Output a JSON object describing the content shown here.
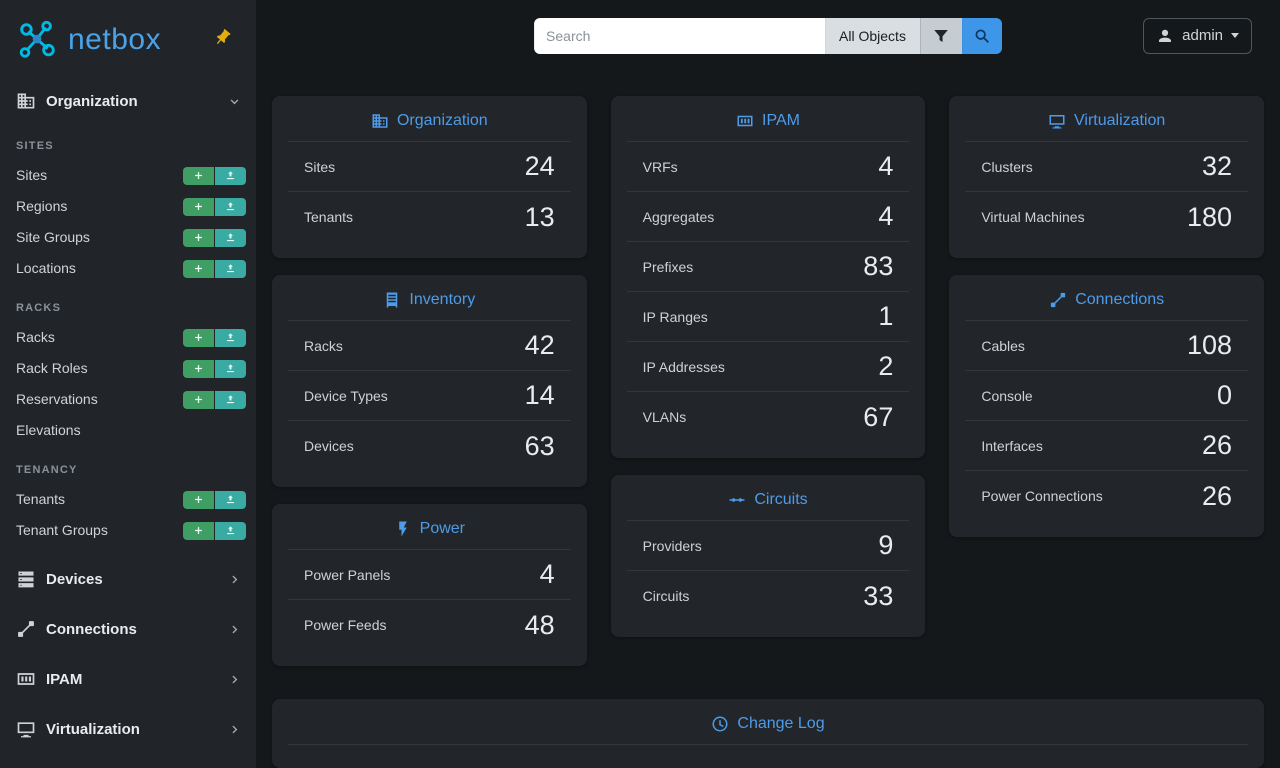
{
  "brand": {
    "logo_text": "netbox"
  },
  "topbar": {
    "search_placeholder": "Search",
    "object_type_label": "All Objects",
    "user_label": "admin"
  },
  "sidebar": {
    "sections_expanded": [
      {
        "label": "Organization",
        "icon": "organization",
        "groups": [
          {
            "heading": "SITES",
            "items": [
              {
                "label": "Sites",
                "actions": [
                  "add",
                  "import"
                ]
              },
              {
                "label": "Regions",
                "actions": [
                  "add",
                  "import"
                ]
              },
              {
                "label": "Site Groups",
                "actions": [
                  "add",
                  "import"
                ]
              },
              {
                "label": "Locations",
                "actions": [
                  "add",
                  "import"
                ]
              }
            ]
          },
          {
            "heading": "RACKS",
            "items": [
              {
                "label": "Racks",
                "actions": [
                  "add",
                  "import"
                ]
              },
              {
                "label": "Rack Roles",
                "actions": [
                  "add",
                  "import"
                ]
              },
              {
                "label": "Reservations",
                "actions": [
                  "add",
                  "import"
                ]
              },
              {
                "label": "Elevations",
                "actions": []
              }
            ]
          },
          {
            "heading": "TENANCY",
            "items": [
              {
                "label": "Tenants",
                "actions": [
                  "add",
                  "import"
                ]
              },
              {
                "label": "Tenant Groups",
                "actions": [
                  "add",
                  "import"
                ]
              }
            ]
          }
        ]
      }
    ],
    "sections_collapsed": [
      {
        "label": "Devices",
        "icon": "devices"
      },
      {
        "label": "Connections",
        "icon": "connections"
      },
      {
        "label": "IPAM",
        "icon": "ipam"
      },
      {
        "label": "Virtualization",
        "icon": "virtualization"
      }
    ]
  },
  "dashboard": {
    "columns": [
      [
        {
          "title": "Organization",
          "icon": "organization",
          "rows": [
            {
              "label": "Sites",
              "value": "24"
            },
            {
              "label": "Tenants",
              "value": "13"
            }
          ]
        },
        {
          "title": "Inventory",
          "icon": "inventory",
          "rows": [
            {
              "label": "Racks",
              "value": "42"
            },
            {
              "label": "Device Types",
              "value": "14"
            },
            {
              "label": "Devices",
              "value": "63"
            }
          ]
        },
        {
          "title": "Power",
          "icon": "power",
          "rows": [
            {
              "label": "Power Panels",
              "value": "4"
            },
            {
              "label": "Power Feeds",
              "value": "48"
            }
          ]
        }
      ],
      [
        {
          "title": "IPAM",
          "icon": "ipam",
          "rows": [
            {
              "label": "VRFs",
              "value": "4"
            },
            {
              "label": "Aggregates",
              "value": "4"
            },
            {
              "label": "Prefixes",
              "value": "83"
            },
            {
              "label": "IP Ranges",
              "value": "1"
            },
            {
              "label": "IP Addresses",
              "value": "2"
            },
            {
              "label": "VLANs",
              "value": "67"
            }
          ]
        },
        {
          "title": "Circuits",
          "icon": "circuits",
          "rows": [
            {
              "label": "Providers",
              "value": "9"
            },
            {
              "label": "Circuits",
              "value": "33"
            }
          ]
        }
      ],
      [
        {
          "title": "Virtualization",
          "icon": "virtualization",
          "rows": [
            {
              "label": "Clusters",
              "value": "32"
            },
            {
              "label": "Virtual Machines",
              "value": "180"
            }
          ]
        },
        {
          "title": "Connections",
          "icon": "connections",
          "rows": [
            {
              "label": "Cables",
              "value": "108"
            },
            {
              "label": "Console",
              "value": "0"
            },
            {
              "label": "Interfaces",
              "value": "26"
            },
            {
              "label": "Power Connections",
              "value": "26"
            }
          ]
        }
      ]
    ],
    "footer_card": {
      "title": "Change Log",
      "icon": "changelog"
    }
  },
  "colors": {
    "accent_blue": "#4e9be8",
    "add_green": "#3f9e63",
    "import_teal": "#3aaba2",
    "pin_gold": "#e2ae0e",
    "search_blue": "#3e96e8",
    "logo_teal": "#00b9e4"
  }
}
